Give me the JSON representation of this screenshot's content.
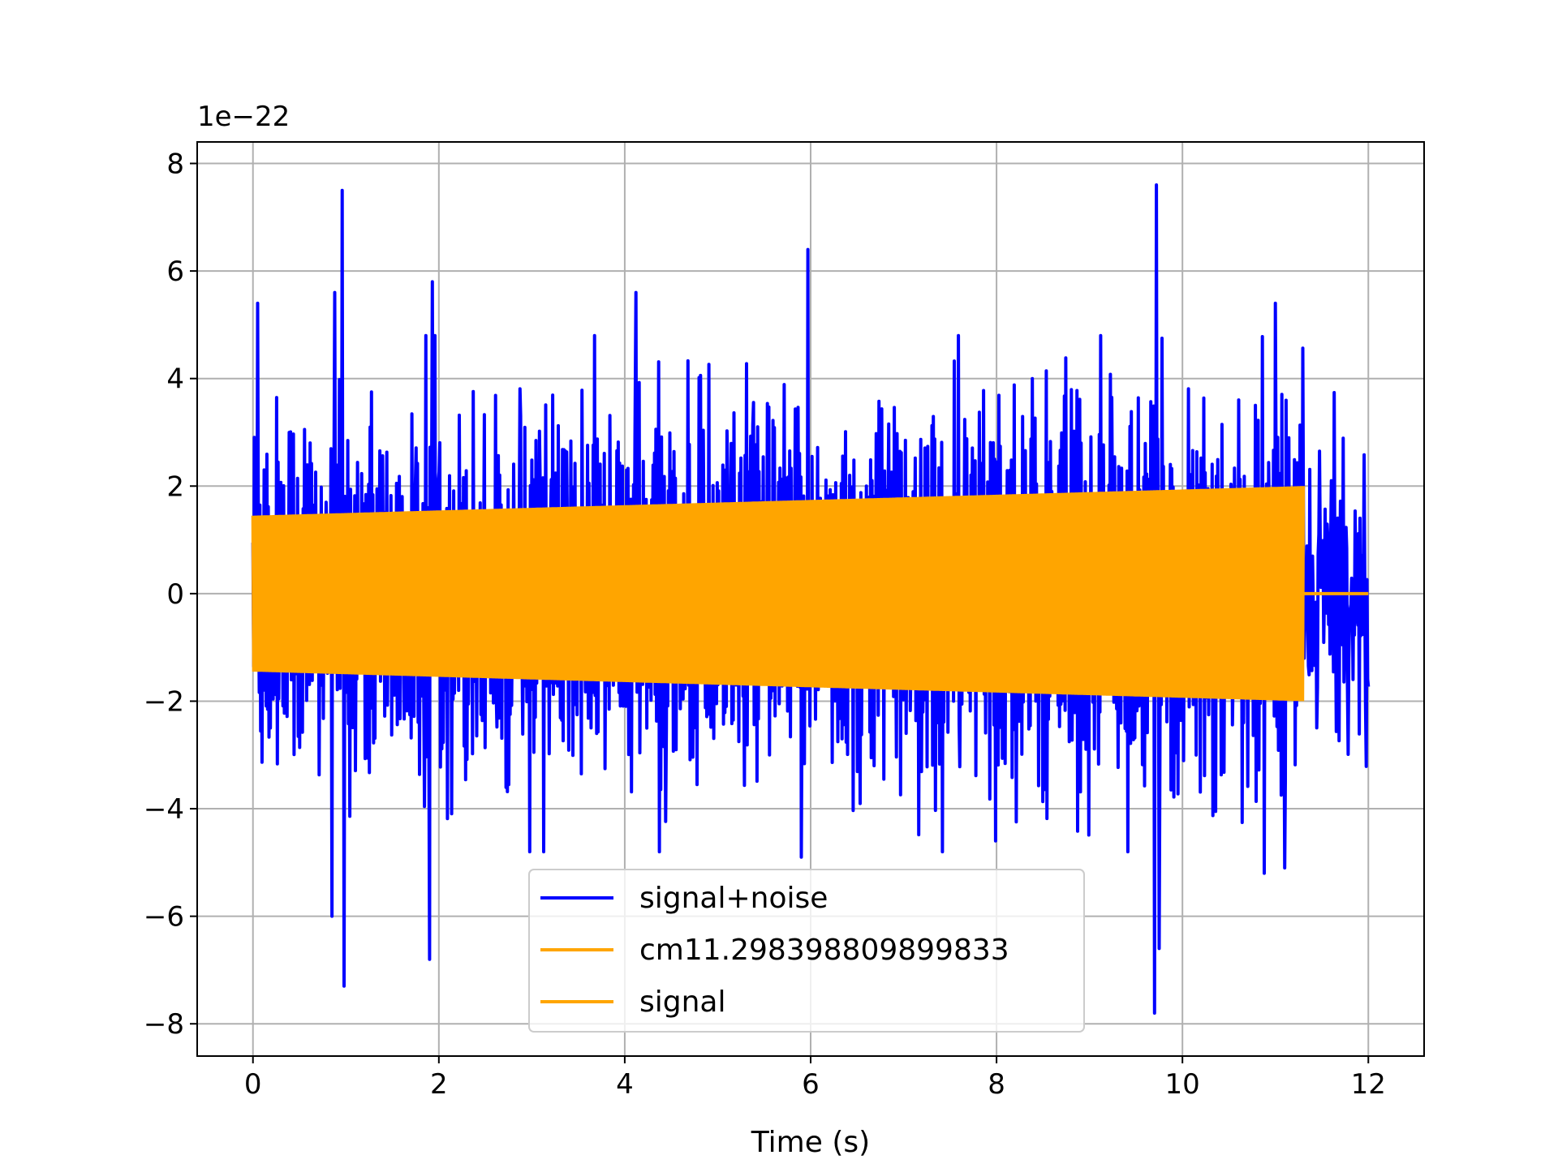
{
  "chart_data": {
    "type": "line",
    "title": "",
    "xlabel": "Time (s)",
    "ylabel": "",
    "offset_text": "1e−22",
    "xlim": [
      -0.6,
      12.6
    ],
    "ylim": [
      -8.6,
      8.4
    ],
    "x_ticks": [
      0,
      2,
      4,
      6,
      8,
      10,
      12
    ],
    "x_tick_labels": [
      "0",
      "2",
      "4",
      "6",
      "8",
      "10",
      "12"
    ],
    "y_ticks": [
      8,
      6,
      4,
      2,
      0,
      -2,
      -4,
      -6,
      -8
    ],
    "y_tick_labels": [
      "8",
      "6",
      "4",
      "2",
      "0",
      "−2",
      "−4",
      "−6",
      "−8"
    ],
    "grid": true,
    "legend_position": "lower-center",
    "series": [
      {
        "name": "signal+noise",
        "color": "#0000ff",
        "x_range": [
          0,
          12
        ],
        "typical_envelope": [
          -2.6,
          2.6
        ],
        "peaks": [
          {
            "x": 0.05,
            "y": 5.4
          },
          {
            "x": 0.88,
            "y": 5.6
          },
          {
            "x": 0.96,
            "y": 7.5
          },
          {
            "x": 0.98,
            "y": -7.3
          },
          {
            "x": 0.85,
            "y": -6.0
          },
          {
            "x": 1.93,
            "y": 5.8
          },
          {
            "x": 1.9,
            "y": -6.8
          },
          {
            "x": 4.12,
            "y": 5.6
          },
          {
            "x": 5.97,
            "y": 6.4
          },
          {
            "x": 5.9,
            "y": -4.9
          },
          {
            "x": 7.99,
            "y": -4.6
          },
          {
            "x": 9.72,
            "y": 7.6
          },
          {
            "x": 9.7,
            "y": -7.8
          },
          {
            "x": 9.75,
            "y": -6.6
          },
          {
            "x": 10.88,
            "y": -5.2
          },
          {
            "x": 11.0,
            "y": 5.4
          },
          {
            "x": 11.1,
            "y": -5.1
          }
        ]
      },
      {
        "name": "cm11.298398809899833",
        "color": "#ffa500",
        "x_range": [
          0,
          11.3
        ],
        "amplitude_start": 1.45,
        "amplitude_end": 2.0
      },
      {
        "name": "signal",
        "color": "#ffa500",
        "x_range": [
          0,
          12
        ],
        "values_after_end": 0
      }
    ]
  }
}
